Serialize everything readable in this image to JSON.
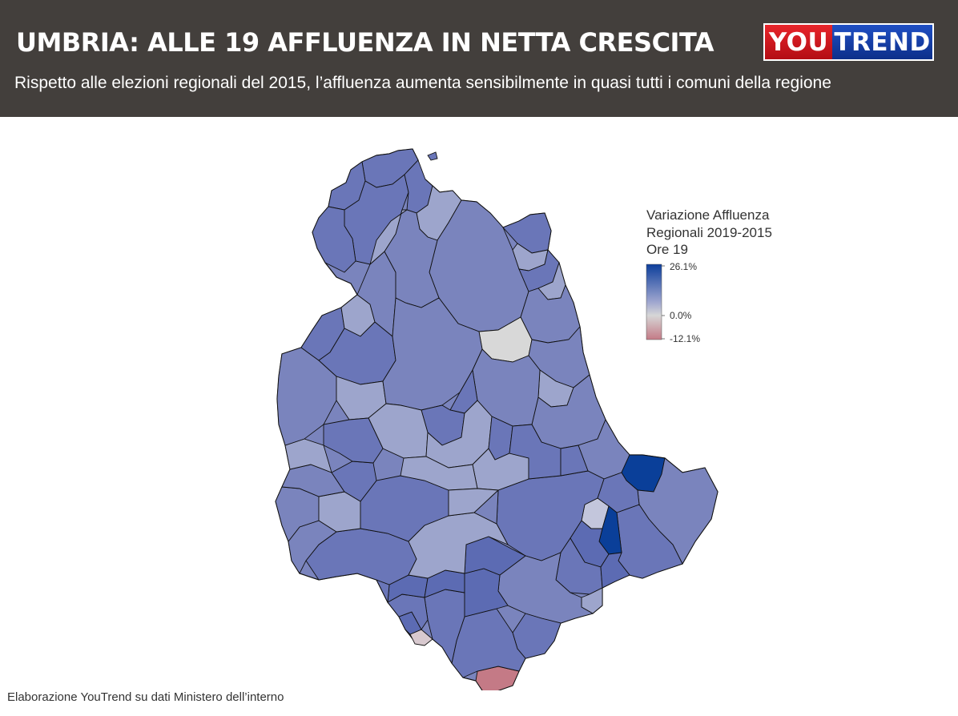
{
  "header": {
    "title": "UMBRIA: ALLE 19 AFFLUENZA IN NETTA CRESCITA",
    "subtitle": "Rispetto alle elezioni regionali del 2015, l’affluenza aumenta sensibilmente in quasi tutti i comuni della regione",
    "logo_part1": "YOU",
    "logo_part2": "TREND"
  },
  "legend": {
    "title_lines": [
      "Variazione Affluenza",
      "Regionali 2019-2015",
      "Ore 19"
    ],
    "max_label": "26.1%",
    "zero_label": "0.0%",
    "min_label": "-12.1%",
    "colors": {
      "max": "#0d3f9c",
      "zero": "#d6d6d6",
      "min": "#c47a86"
    }
  },
  "map": {
    "region": "Umbria",
    "fill_colors": {
      "strong_increase": "#0a3f99",
      "high_increase": "#5c6bb3",
      "medium_increase": "#7a84bd",
      "low_increase": "#9da5cc",
      "no_change": "#d8d8d8",
      "decrease": "#c47a86"
    }
  },
  "footer": {
    "source": "Elaborazione YouTrend su dati Ministero dell’interno"
  }
}
